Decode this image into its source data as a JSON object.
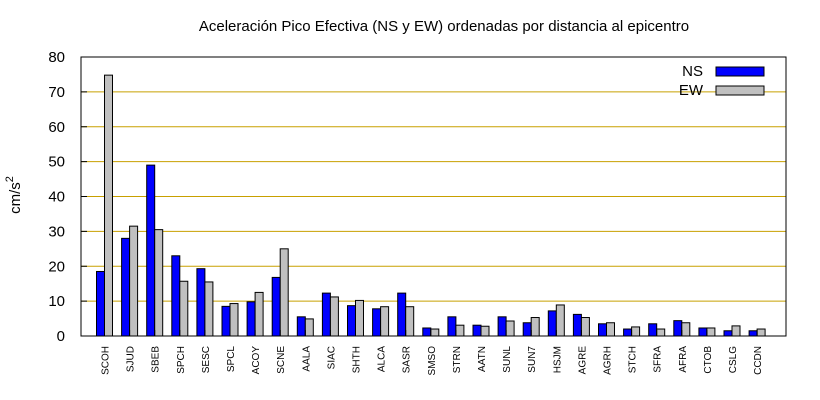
{
  "chart_data": {
    "type": "bar",
    "title": "Aceleración Pico Efectiva (NS y EW) ordenadas por distancia al epicentro",
    "xlabel": "",
    "ylabel": "cm/s",
    "ylabel_sup": "2",
    "ylim": [
      0,
      80
    ],
    "yticks": [
      0,
      10,
      20,
      30,
      40,
      50,
      60,
      70,
      80
    ],
    "grid": "horizontal",
    "legend_position": "top-right",
    "categories": [
      "SCOH",
      "SJUD",
      "SBEB",
      "SPCH",
      "SESC",
      "SPCL",
      "ACOY",
      "SCNE",
      "AALA",
      "SIAC",
      "SHTH",
      "ALCA",
      "SASR",
      "SMSO",
      "STRN",
      "AATN",
      "SUNL",
      "SUN7",
      "HSJM",
      "AGRE",
      "AGRH",
      "STCH",
      "SFRA",
      "AFRA",
      "CTOB",
      "CSLG",
      "CCDN"
    ],
    "series": [
      {
        "name": "NS",
        "color": "#0000ff",
        "values": [
          18.5,
          28.0,
          49.0,
          23.0,
          19.3,
          8.5,
          9.8,
          16.8,
          5.5,
          12.3,
          8.7,
          7.8,
          12.3,
          2.3,
          5.5,
          3.1,
          5.5,
          3.8,
          7.2,
          6.2,
          3.5,
          2.0,
          3.5,
          4.4,
          2.3,
          1.5,
          1.5
        ]
      },
      {
        "name": "EW",
        "color": "#c0c0c0",
        "values": [
          74.8,
          31.5,
          30.5,
          15.7,
          15.5,
          9.3,
          12.5,
          25.0,
          4.9,
          11.2,
          10.2,
          8.4,
          8.4,
          2.0,
          3.1,
          2.8,
          4.3,
          5.3,
          8.9,
          5.3,
          3.8,
          2.6,
          2.0,
          3.8,
          2.3,
          2.9,
          2.0
        ]
      }
    ],
    "grid_color": "#c8a000"
  }
}
